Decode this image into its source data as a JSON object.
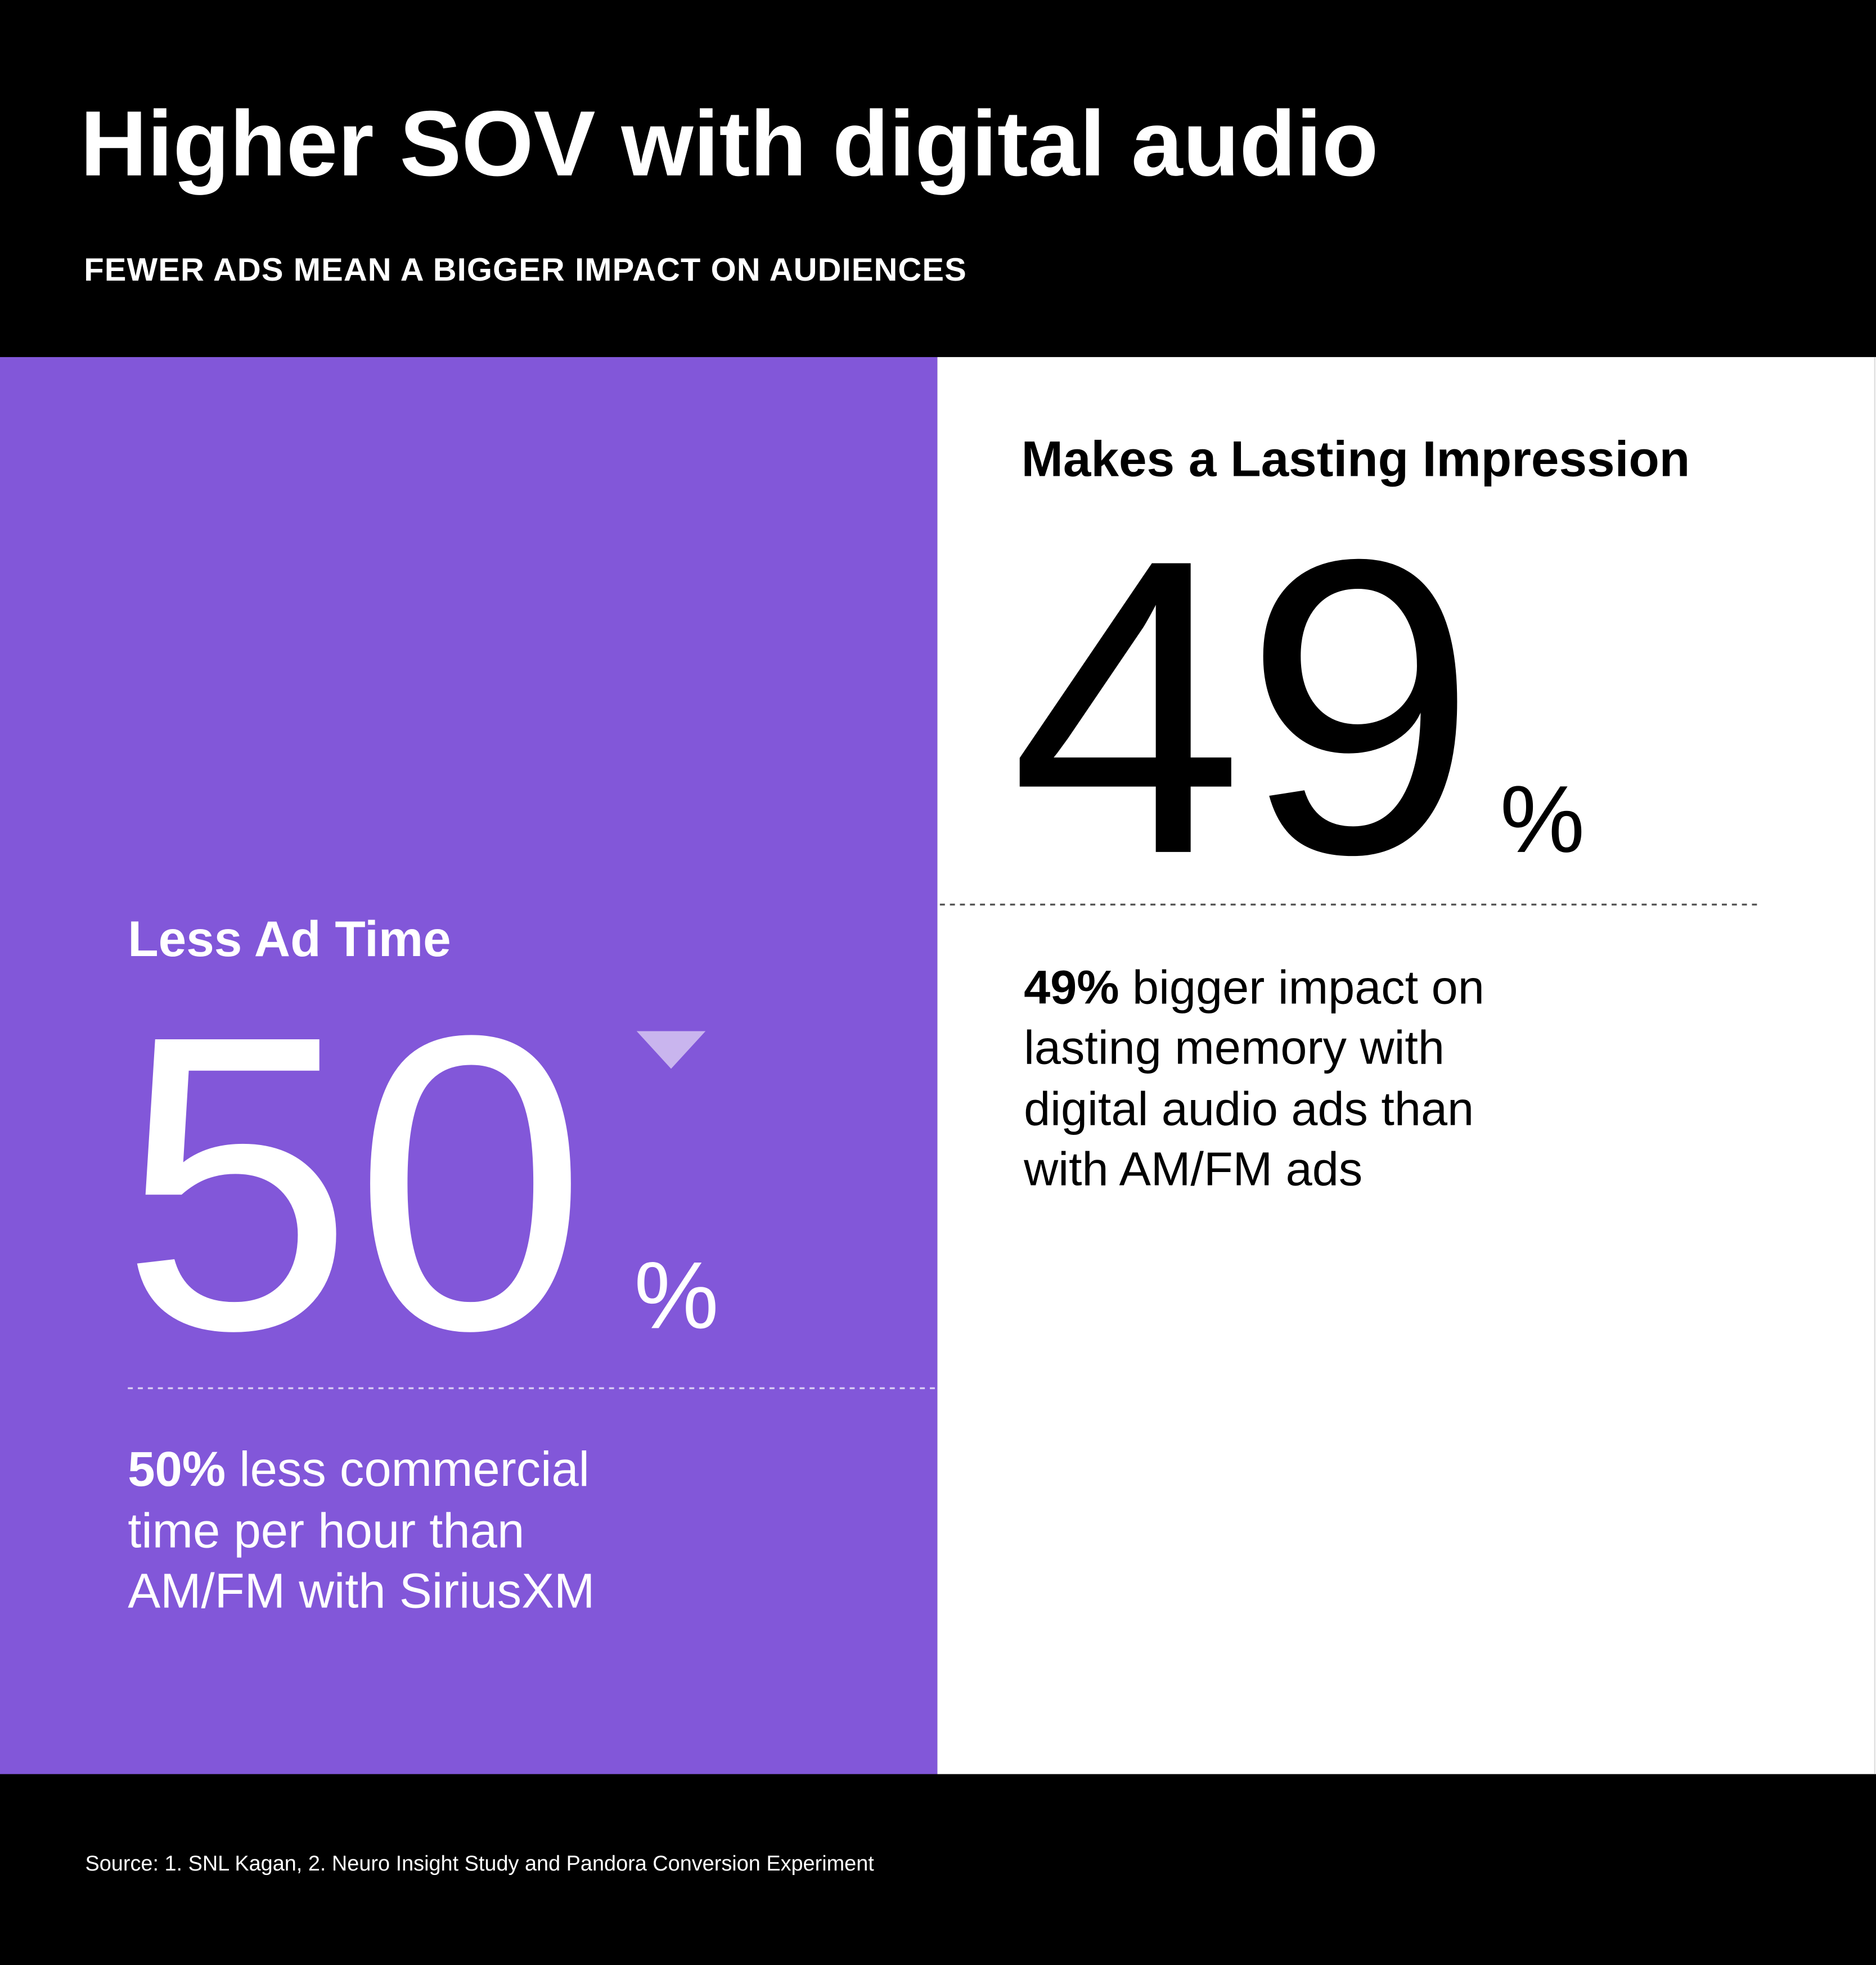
{
  "header": {
    "title": "Higher SOV with digital audio",
    "subtitle": "FEWER ADS MEAN A BIGGER IMPACT ON AUDIENCES"
  },
  "panels": [
    {
      "heading": "Less Ad Time",
      "stat": "50",
      "unit": "%",
      "description_lead": "50%",
      "description_lines": [
        "less commercial",
        "time per hour than",
        "AM/FM with SiriusXM"
      ]
    },
    {
      "heading": "Makes a Lasting Impression",
      "stat": "49",
      "unit": "%",
      "description_lead": "49%",
      "description_lines": [
        "bigger impact on",
        "lasting memory with",
        "digital audio ads than",
        "with AM/FM ads"
      ]
    }
  ],
  "footer": {
    "source": "Source: 1. SNL Kagan, 2. Neuro Insight Study and Pandora Conversion Experiment"
  }
}
